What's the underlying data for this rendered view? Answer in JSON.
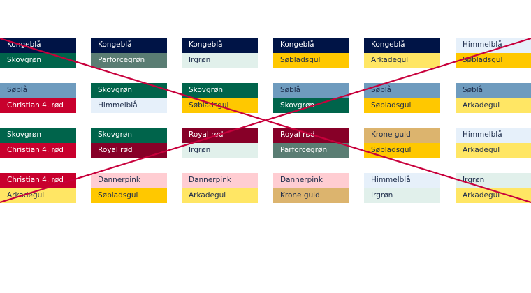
{
  "colors": {
    "Kongeblå": {
      "bg": "#001446",
      "fg": "#ffffff"
    },
    "Skovgrøn": {
      "bg": "#00644b",
      "fg": "#ffffff"
    },
    "Parforcegrøn": {
      "bg": "#5a7d73",
      "fg": "#ffffff"
    },
    "Irgrøn": {
      "bg": "#e1f0eb",
      "fg": "#1e2d4b"
    },
    "Søbladsgul": {
      "bg": "#ffc800",
      "fg": "#1e2d4b"
    },
    "Arkadegul": {
      "bg": "#ffe664",
      "fg": "#1e2d4b"
    },
    "Søblå": {
      "bg": "#6e9bbe",
      "fg": "#1e2d4b"
    },
    "Christian 4. rød": {
      "bg": "#c8002d",
      "fg": "#ffffff"
    },
    "Himmelblå": {
      "bg": "#e6f0fa",
      "fg": "#1e2d4b"
    },
    "Royal rød": {
      "bg": "#870028",
      "fg": "#ffffff"
    },
    "Dannerpink": {
      "bg": "#ffcdd2",
      "fg": "#1e2d4b"
    },
    "Krone guld": {
      "bg": "#dcb46e",
      "fg": "#1e2d4b"
    }
  },
  "cross_color": "#c8003c",
  "rows": [
    [
      [
        "Kongeblå",
        "Skovgrøn"
      ],
      [
        "Kongeblå",
        "Parforcegrøn"
      ],
      [
        "Kongeblå",
        "Irgrøn"
      ],
      [
        "Kongeblå",
        "Søbladsgul"
      ],
      [
        "Kongeblå",
        "Arkadegul"
      ],
      [
        "Himmelblå",
        "Søbladsgul"
      ]
    ],
    [
      [
        "Søblå",
        "Christian 4. rød"
      ],
      [
        "Skovgrøn",
        "Himmelblå"
      ],
      [
        "Skovgrøn",
        "Søbladsgul"
      ],
      [
        "Søblå",
        "Skovgrøn"
      ],
      [
        "Søblå",
        "Søbladsgul"
      ],
      [
        "Søblå",
        "Arkadegul"
      ]
    ],
    [
      [
        "Skovgrøn",
        "Christian 4. rød"
      ],
      [
        "Skovgrøn",
        "Royal rød"
      ],
      [
        "Royal rød",
        "Irgrøn"
      ],
      [
        "Royal rød",
        "Parforcegrøn"
      ],
      [
        "Krone guld",
        "Søbladsgul"
      ],
      [
        "Himmelblå",
        "Arkadegul"
      ]
    ],
    [
      [
        "Christian 4. rød",
        "Arkadegul"
      ],
      [
        "Dannerpink",
        "Søbladsgul"
      ],
      [
        "Dannerpink",
        "Arkadegul"
      ],
      [
        "Dannerpink",
        "Krone guld"
      ],
      [
        "Himmelblå",
        "Irgrøn"
      ],
      [
        "Irgrøn",
        "Arkadegul"
      ]
    ]
  ]
}
